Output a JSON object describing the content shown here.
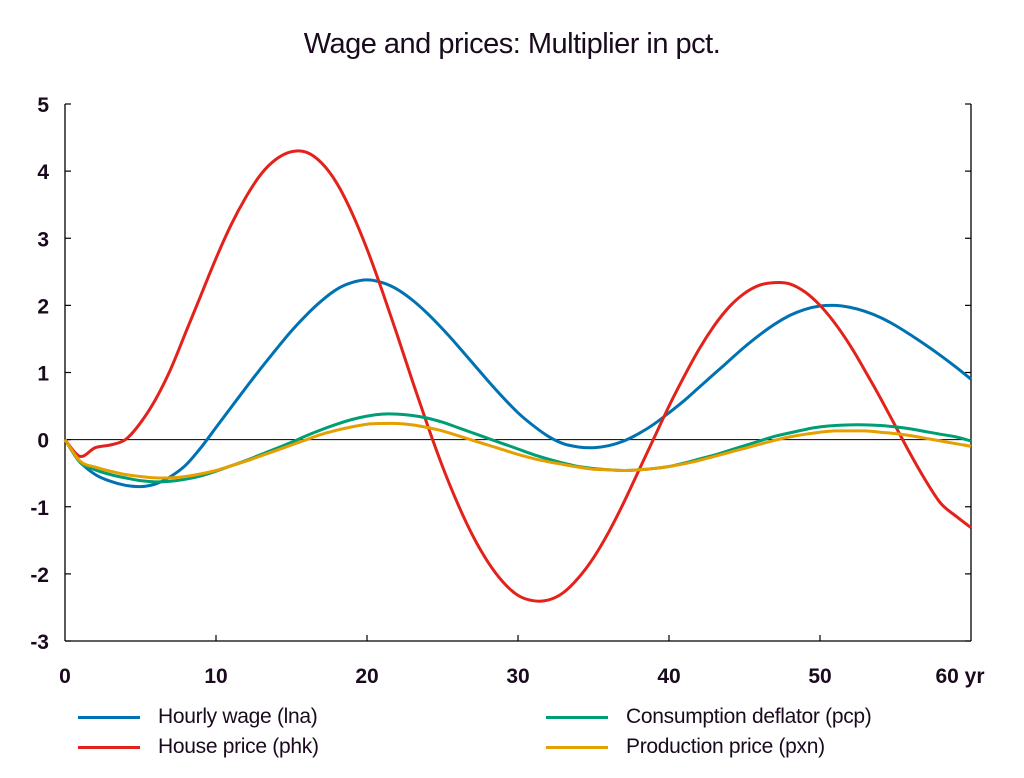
{
  "chart_data": {
    "type": "line",
    "title": "Wage and prices: Multiplier in pct.",
    "xlabel": "yr",
    "ylabel": "",
    "xlim": [
      0,
      60
    ],
    "ylim": [
      -3,
      5
    ],
    "x_ticks": [
      0,
      10,
      20,
      30,
      40,
      50,
      60
    ],
    "x_tick_labels": [
      "0",
      "10",
      "20",
      "30",
      "40",
      "50",
      "60 yr"
    ],
    "y_ticks": [
      5,
      4,
      3,
      2,
      1,
      0,
      -1,
      -2,
      -3
    ],
    "y_tick_labels": [
      "5",
      "4",
      "3",
      "2",
      "1",
      "0",
      "-1",
      "-2",
      "-3"
    ],
    "grid": false,
    "zero_line": true,
    "legend_position": "bottom",
    "x": [
      0,
      1,
      2,
      3,
      4,
      5,
      6,
      7,
      8,
      9,
      10,
      11,
      12,
      13,
      14,
      15,
      16,
      17,
      18,
      19,
      20,
      21,
      22,
      23,
      24,
      25,
      26,
      27,
      28,
      29,
      30,
      31,
      32,
      33,
      34,
      35,
      36,
      37,
      38,
      39,
      40,
      41,
      42,
      43,
      44,
      45,
      46,
      47,
      48,
      49,
      50,
      51,
      52,
      53,
      54,
      55,
      56,
      57,
      58,
      59,
      60
    ],
    "series": [
      {
        "name": "Hourly wage (lna)",
        "color": "#0072b2",
        "values": [
          0,
          -0.33,
          -0.52,
          -0.62,
          -0.68,
          -0.7,
          -0.66,
          -0.55,
          -0.38,
          -0.12,
          0.18,
          0.48,
          0.78,
          1.07,
          1.35,
          1.62,
          1.86,
          2.07,
          2.24,
          2.34,
          2.38,
          2.34,
          2.24,
          2.08,
          1.88,
          1.65,
          1.4,
          1.14,
          0.88,
          0.63,
          0.4,
          0.21,
          0.05,
          -0.06,
          -0.11,
          -0.12,
          -0.09,
          -0.02,
          0.09,
          0.23,
          0.4,
          0.58,
          0.78,
          0.98,
          1.18,
          1.38,
          1.56,
          1.72,
          1.85,
          1.94,
          1.99,
          2.0,
          1.97,
          1.91,
          1.82,
          1.7,
          1.56,
          1.41,
          1.25,
          1.08,
          0.9
        ]
      },
      {
        "name": "House price (phk)",
        "color": "#e3221b",
        "values": [
          0,
          -0.25,
          -0.12,
          -0.08,
          0.0,
          0.25,
          0.6,
          1.05,
          1.6,
          2.15,
          2.7,
          3.2,
          3.62,
          3.96,
          4.18,
          4.29,
          4.28,
          4.12,
          3.82,
          3.38,
          2.84,
          2.22,
          1.56,
          0.88,
          0.22,
          -0.4,
          -0.95,
          -1.43,
          -1.82,
          -2.12,
          -2.32,
          -2.4,
          -2.39,
          -2.28,
          -2.06,
          -1.76,
          -1.38,
          -0.94,
          -0.46,
          0.02,
          0.5,
          0.94,
          1.35,
          1.7,
          1.98,
          2.18,
          2.3,
          2.34,
          2.32,
          2.2,
          2.0,
          1.73,
          1.4,
          1.02,
          0.62,
          0.2,
          -0.22,
          -0.61,
          -0.95,
          -1.14,
          -1.31
        ]
      },
      {
        "name": "Consumption deflator (pcp)",
        "color": "#009e73",
        "values": [
          0,
          -0.34,
          -0.45,
          -0.52,
          -0.57,
          -0.61,
          -0.63,
          -0.62,
          -0.59,
          -0.54,
          -0.47,
          -0.39,
          -0.31,
          -0.22,
          -0.13,
          -0.04,
          0.06,
          0.15,
          0.23,
          0.3,
          0.35,
          0.38,
          0.38,
          0.36,
          0.32,
          0.26,
          0.18,
          0.1,
          0.02,
          -0.06,
          -0.14,
          -0.22,
          -0.29,
          -0.35,
          -0.4,
          -0.43,
          -0.45,
          -0.46,
          -0.45,
          -0.43,
          -0.4,
          -0.35,
          -0.29,
          -0.23,
          -0.16,
          -0.09,
          -0.02,
          0.05,
          0.1,
          0.15,
          0.19,
          0.21,
          0.22,
          0.22,
          0.21,
          0.19,
          0.16,
          0.12,
          0.08,
          0.04,
          -0.02
        ]
      },
      {
        "name": "Production price (pxn)",
        "color": "#e69f00",
        "values": [
          0,
          -0.32,
          -0.41,
          -0.47,
          -0.52,
          -0.55,
          -0.57,
          -0.57,
          -0.55,
          -0.51,
          -0.46,
          -0.39,
          -0.32,
          -0.24,
          -0.16,
          -0.08,
          0.0,
          0.08,
          0.14,
          0.19,
          0.23,
          0.24,
          0.24,
          0.22,
          0.18,
          0.13,
          0.06,
          -0.01,
          -0.08,
          -0.15,
          -0.22,
          -0.28,
          -0.33,
          -0.37,
          -0.41,
          -0.44,
          -0.45,
          -0.46,
          -0.45,
          -0.43,
          -0.4,
          -0.36,
          -0.31,
          -0.25,
          -0.19,
          -0.13,
          -0.07,
          -0.01,
          0.04,
          0.08,
          0.11,
          0.13,
          0.13,
          0.13,
          0.11,
          0.09,
          0.06,
          0.02,
          -0.02,
          -0.06,
          -0.1
        ]
      }
    ]
  }
}
